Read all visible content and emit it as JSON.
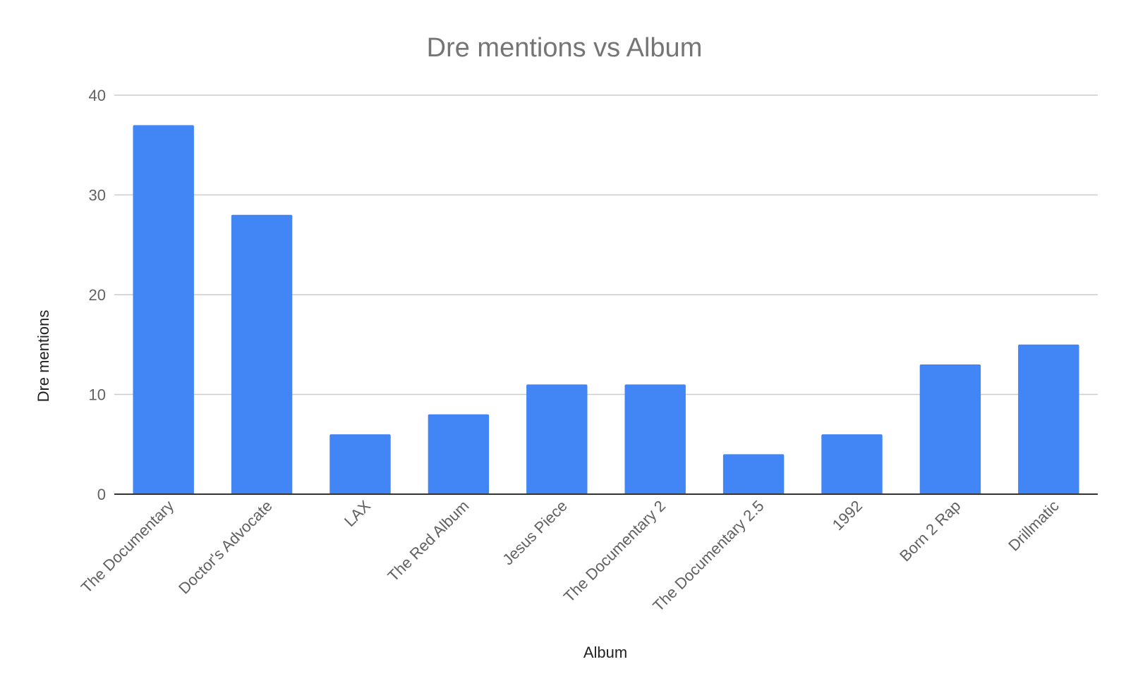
{
  "chart_data": {
    "type": "bar",
    "title": "Dre mentions vs Album",
    "xlabel": "Album",
    "ylabel": "Dre mentions",
    "categories": [
      "The Documentary",
      "Doctor's Advocate",
      "LAX",
      "The Red Album",
      "Jesus Piece",
      "The Documentary 2",
      "The Documentary 2.5",
      "1992",
      "Born 2 Rap",
      "Drillmatic"
    ],
    "values": [
      37,
      28,
      6,
      8,
      11,
      11,
      4,
      6,
      13,
      15
    ],
    "ylim": [
      0,
      40
    ],
    "yticks": [
      0,
      10,
      20,
      30,
      40
    ],
    "grid": true,
    "legend": "none",
    "bar_color": "#4285f4",
    "grid_color": "#cccccc",
    "axis_color": "#333333",
    "title_color": "#757575",
    "tick_label_color": "#616161",
    "axis_title_color": "#222222"
  }
}
